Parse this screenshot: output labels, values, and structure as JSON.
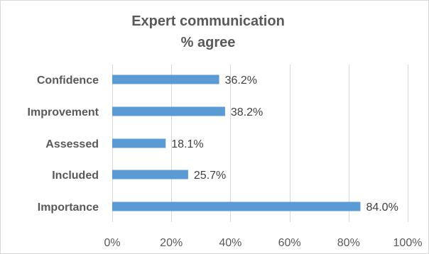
{
  "chart_data": {
    "type": "bar",
    "orientation": "horizontal",
    "title_lines": [
      "Expert communication",
      "% agree"
    ],
    "categories": [
      "Confidence",
      "Improvement",
      "Assessed",
      "Included",
      "Importance"
    ],
    "values": [
      36.2,
      38.2,
      18.1,
      25.7,
      84.0
    ],
    "value_labels": [
      "36.2%",
      "38.2%",
      "18.1%",
      "25.7%",
      "84.0%"
    ],
    "xlim": [
      0,
      100
    ],
    "x_ticks": [
      0,
      20,
      40,
      60,
      80,
      100
    ],
    "x_tick_labels": [
      "0%",
      "20%",
      "40%",
      "60%",
      "80%",
      "100%"
    ],
    "xlabel": "",
    "ylabel": "",
    "grid": "vertical",
    "legend": "none",
    "bar_color": "#5b9bd5",
    "grid_color": "#d9d9d9",
    "text_color": "#595959"
  }
}
